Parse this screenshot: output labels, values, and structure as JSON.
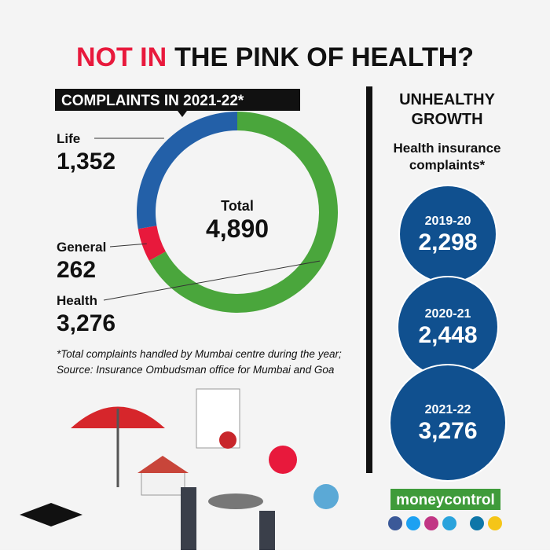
{
  "header": {
    "title_red": "NOT IN",
    "title_rest": "THE PINK OF HEALTH?"
  },
  "chart_data": [
    {
      "type": "pie",
      "title": "COMPLAINTS IN 2021-22*",
      "categories": [
        "Life",
        "General",
        "Health"
      ],
      "values": [
        1352,
        262,
        3276
      ],
      "value_labels": [
        "1,352",
        "262",
        "3,276"
      ],
      "colors": [
        "#2360a8",
        "#e8193c",
        "#4aa63c"
      ],
      "center_label": "Total",
      "total": {
        "value": 4890,
        "label": "4,890"
      },
      "note": [
        "*Total complaints handled by Mumbai centre during the year;",
        "Source: Insurance Ombudsman office for Mumbai and Goa"
      ]
    },
    {
      "type": "bubble",
      "title": "UNHEALTHY GROWTH",
      "subtitle": "Health insurance complaints*",
      "categories": [
        "2019-20",
        "2020-21",
        "2021-22"
      ],
      "values": [
        2298,
        2448,
        3276
      ],
      "value_labels": [
        "2,298",
        "2,448",
        "3,276"
      ],
      "color": "#10508f"
    }
  ],
  "footer": {
    "brand_a": "money",
    "brand_b": "control"
  }
}
